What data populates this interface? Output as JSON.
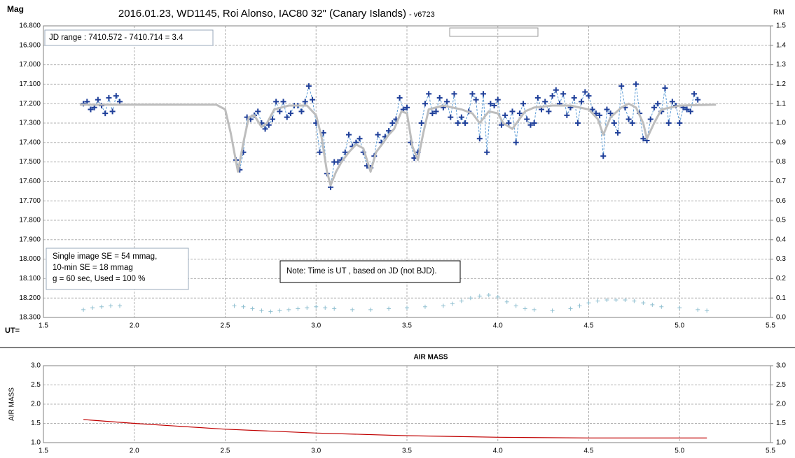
{
  "chart_data": [
    {
      "type": "line",
      "title": "2016.01.23,  WD1145, Roi Alonso,  IAC80 32\" (Canary Islands)",
      "subtitle": "- v6723",
      "y_label": "Mag",
      "y2_label": "RM",
      "x_label": "UT=",
      "annotations": [
        "JD range  : 7410.572 - 7410.714  = 3.4",
        "Single image SE = 54 mmag,",
        "10-min SE = 18 mmag",
        "g = 60 sec, Used = 100 %",
        "Note: Time is UT , based on JD (not BJD)."
      ],
      "xlim": [
        1.5,
        5.5
      ],
      "xticks": [
        1.5,
        {
          "value": 2,
          "label": "2.0"
        },
        2.5,
        {
          "value": 3,
          "label": "3.0"
        },
        3.5,
        {
          "value": 4,
          "label": "4.0"
        },
        4.5,
        {
          "value": 5,
          "label": "5.0"
        },
        5.5
      ],
      "ylim": [
        18.3,
        16.8
      ],
      "yticks": [
        {
          "value": 16.8,
          "label": "16.800"
        },
        {
          "value": 16.9,
          "label": "16.900"
        },
        {
          "value": 17.0,
          "label": "17.000"
        },
        {
          "value": 17.1,
          "label": "17.100"
        },
        {
          "value": 17.2,
          "label": "17.200"
        },
        {
          "value": 17.3,
          "label": "17.300"
        },
        {
          "value": 17.4,
          "label": "17.400"
        },
        {
          "value": 17.5,
          "label": "17.500"
        },
        {
          "value": 17.6,
          "label": "17.600"
        },
        {
          "value": 17.7,
          "label": "17.700"
        },
        {
          "value": 17.8,
          "label": "17.800"
        },
        {
          "value": 17.9,
          "label": "17.900"
        },
        {
          "value": 18.0,
          "label": "18.000"
        },
        {
          "value": 18.1,
          "label": "18.100"
        },
        {
          "value": 18.2,
          "label": "18.200"
        },
        {
          "value": 18.3,
          "label": "18.300"
        }
      ],
      "y2lim": [
        0,
        1.5
      ],
      "y2ticks": [
        1.5,
        1.4,
        1.3,
        1.2,
        1.1,
        {
          "value": 1,
          "label": "1.0"
        },
        0.9,
        0.8,
        0.7,
        0.6,
        0.5,
        0.4,
        0.3,
        0.2,
        0.1,
        {
          "value": 0,
          "label": "0.0"
        }
      ],
      "grid": true,
      "series": [
        {
          "color": "#1f3f99",
          "marker": "+",
          "line": "dashed",
          "line_color": "#5b9bd5",
          "x": [
            1.72,
            1.74,
            1.76,
            1.78,
            1.8,
            1.82,
            1.84,
            1.86,
            1.88,
            1.9,
            1.92,
            2.2,
            2.56,
            2.58,
            2.6,
            2.62,
            2.64,
            2.66,
            2.68,
            2.7,
            2.72,
            2.74,
            2.76,
            2.78,
            2.8,
            2.82,
            2.84,
            2.86,
            2.88,
            2.9,
            2.92,
            2.94,
            2.96,
            2.98,
            3.0,
            3.02,
            3.04,
            3.06,
            3.08,
            3.1,
            3.12,
            3.14,
            3.16,
            3.18,
            3.2,
            3.22,
            3.24,
            3.26,
            3.28,
            3.3,
            3.32,
            3.34,
            3.36,
            3.38,
            3.4,
            3.42,
            3.44,
            3.46,
            3.48,
            3.5,
            3.52,
            3.54,
            3.56,
            3.58,
            3.6,
            3.62,
            3.64,
            3.66,
            3.68,
            3.7,
            3.72,
            3.74,
            3.76,
            3.78,
            3.8,
            3.82,
            3.84,
            3.86,
            3.88,
            3.9,
            3.92,
            3.94,
            3.96,
            3.98,
            4.0,
            4.02,
            4.04,
            4.06,
            4.08,
            4.1,
            4.12,
            4.14,
            4.16,
            4.18,
            4.2,
            4.22,
            4.24,
            4.26,
            4.28,
            4.3,
            4.32,
            4.34,
            4.36,
            4.38,
            4.4,
            4.42,
            4.44,
            4.46,
            4.48,
            4.5,
            4.52,
            4.54,
            4.56,
            4.58,
            4.6,
            4.62,
            4.64,
            4.66,
            4.68,
            4.7,
            4.72,
            4.74,
            4.76,
            4.78,
            4.8,
            4.82,
            4.84,
            4.86,
            4.88,
            4.9,
            4.92,
            4.94,
            4.96,
            4.98,
            5.0,
            5.02,
            5.04,
            5.06,
            5.08,
            5.1
          ],
          "values": [
            17.2,
            17.19,
            17.23,
            17.22,
            17.18,
            17.21,
            17.25,
            17.17,
            17.24,
            17.16,
            17.19,
            null,
            17.49,
            17.54,
            17.45,
            17.27,
            17.28,
            17.26,
            17.24,
            17.3,
            17.33,
            17.31,
            17.28,
            17.19,
            17.24,
            17.19,
            17.27,
            17.25,
            17.21,
            17.21,
            17.24,
            17.19,
            17.11,
            17.18,
            17.3,
            17.45,
            17.35,
            17.56,
            17.63,
            17.5,
            17.5,
            17.49,
            17.45,
            17.36,
            17.42,
            17.4,
            17.38,
            17.45,
            17.52,
            17.53,
            17.47,
            17.36,
            17.4,
            17.37,
            17.34,
            17.3,
            17.28,
            17.17,
            17.23,
            17.22,
            17.4,
            17.48,
            17.45,
            17.3,
            17.2,
            17.15,
            17.25,
            17.24,
            17.17,
            17.22,
            17.19,
            17.27,
            17.15,
            17.3,
            17.27,
            17.3,
            17.24,
            17.15,
            17.18,
            17.38,
            17.15,
            17.45,
            17.2,
            17.21,
            17.18,
            17.31,
            17.26,
            17.3,
            17.24,
            17.4,
            17.25,
            17.2,
            17.28,
            17.31,
            17.3,
            17.17,
            17.23,
            17.19,
            17.24,
            17.16,
            17.13,
            17.2,
            17.15,
            17.26,
            17.22,
            17.17,
            17.3,
            17.19,
            17.14,
            17.16,
            17.23,
            17.25,
            17.26,
            17.47,
            17.23,
            17.25,
            17.3,
            17.35,
            17.11,
            17.22,
            17.28,
            17.3,
            17.1,
            17.25,
            17.38,
            17.39,
            17.28,
            17.22,
            17.2,
            17.24,
            17.12,
            17.3,
            17.19,
            17.21,
            17.3,
            17.22,
            17.23,
            17.24,
            17.15,
            17.18
          ]
        },
        {
          "color": "#bdbdbd",
          "line": "solid",
          "x": [
            1.7,
            2.45,
            2.5,
            2.53,
            2.57,
            2.6,
            2.63,
            2.66,
            2.7,
            2.73,
            2.77,
            2.85,
            2.95,
            3.0,
            3.03,
            3.06,
            3.08,
            3.11,
            3.14,
            3.18,
            3.22,
            3.26,
            3.3,
            3.33,
            3.37,
            3.4,
            3.43,
            3.47,
            3.5,
            3.53,
            3.56,
            3.59,
            3.62,
            3.7,
            3.8,
            3.86,
            3.9,
            3.95,
            4.0,
            4.03,
            4.08,
            4.15,
            4.2,
            4.3,
            4.4,
            4.5,
            4.55,
            4.58,
            4.62,
            4.68,
            4.72,
            4.76,
            4.8,
            4.82,
            4.86,
            4.9,
            5.0,
            5.2
          ],
          "values": [
            17.205,
            17.205,
            17.23,
            17.35,
            17.55,
            17.4,
            17.27,
            17.26,
            17.32,
            17.3,
            17.23,
            17.21,
            17.21,
            17.26,
            17.37,
            17.55,
            17.62,
            17.55,
            17.5,
            17.45,
            17.41,
            17.43,
            17.55,
            17.45,
            17.4,
            17.36,
            17.33,
            17.24,
            17.25,
            17.42,
            17.49,
            17.35,
            17.23,
            17.21,
            17.23,
            17.25,
            17.3,
            17.24,
            17.25,
            17.3,
            17.33,
            17.24,
            17.22,
            17.21,
            17.21,
            17.23,
            17.28,
            17.36,
            17.27,
            17.22,
            17.2,
            17.22,
            17.3,
            17.38,
            17.3,
            17.23,
            17.21,
            17.205
          ]
        },
        {
          "color": "#8fbfd0",
          "marker": "+",
          "axis": "y2",
          "x": [
            1.72,
            1.77,
            1.82,
            1.87,
            1.92,
            2.2,
            2.55,
            2.6,
            2.65,
            2.7,
            2.75,
            2.8,
            2.85,
            2.9,
            2.95,
            3.0,
            3.05,
            3.1,
            3.2,
            3.3,
            3.4,
            3.5,
            3.6,
            3.7,
            3.75,
            3.8,
            3.85,
            3.9,
            3.95,
            4.0,
            4.05,
            4.1,
            4.15,
            4.2,
            4.3,
            4.4,
            4.45,
            4.5,
            4.55,
            4.6,
            4.65,
            4.7,
            4.75,
            4.8,
            4.85,
            4.9,
            5.0,
            5.1,
            5.15
          ],
          "values": [
            0.04,
            0.05,
            0.055,
            0.06,
            0.06,
            null,
            0.06,
            0.055,
            0.045,
            0.035,
            0.03,
            0.035,
            0.04,
            0.045,
            0.05,
            0.055,
            0.05,
            0.045,
            0.04,
            0.04,
            0.045,
            0.05,
            0.055,
            0.06,
            0.07,
            0.085,
            0.1,
            0.11,
            0.115,
            0.105,
            0.08,
            0.06,
            0.045,
            0.04,
            0.035,
            0.045,
            0.06,
            0.075,
            0.085,
            0.09,
            0.09,
            0.09,
            0.085,
            0.075,
            0.065,
            0.055,
            0.05,
            0.04,
            0.035
          ]
        }
      ]
    },
    {
      "type": "line",
      "title": "AIR MASS",
      "y_label": "AIR MASS",
      "xlim": [
        1.5,
        5.5
      ],
      "xticks": [
        1.5,
        {
          "value": 2,
          "label": "2.0"
        },
        2.5,
        {
          "value": 3,
          "label": "3.0"
        },
        3.5,
        {
          "value": 4,
          "label": "4.0"
        },
        4.5,
        {
          "value": 5,
          "label": "5.0"
        },
        5.5
      ],
      "ylim": [
        1,
        3
      ],
      "yticks": [
        {
          "value": 1,
          "label": "1.0"
        },
        1.5,
        {
          "value": 2,
          "label": "2.0"
        },
        2.5,
        {
          "value": 3,
          "label": "3.0"
        }
      ],
      "y2lim": [
        1,
        3
      ],
      "y2ticks": [
        {
          "value": 1,
          "label": "1.0"
        },
        1.5,
        {
          "value": 2,
          "label": "2.0"
        },
        2.5,
        {
          "value": 3,
          "label": "3.0"
        }
      ],
      "grid": true,
      "series": [
        {
          "color": "#c00000",
          "line": "solid",
          "x": [
            1.72,
            2.0,
            2.5,
            3.0,
            3.5,
            4.0,
            4.5,
            5.15
          ],
          "values": [
            1.6,
            1.5,
            1.35,
            1.25,
            1.18,
            1.14,
            1.12,
            1.12
          ]
        }
      ]
    }
  ]
}
